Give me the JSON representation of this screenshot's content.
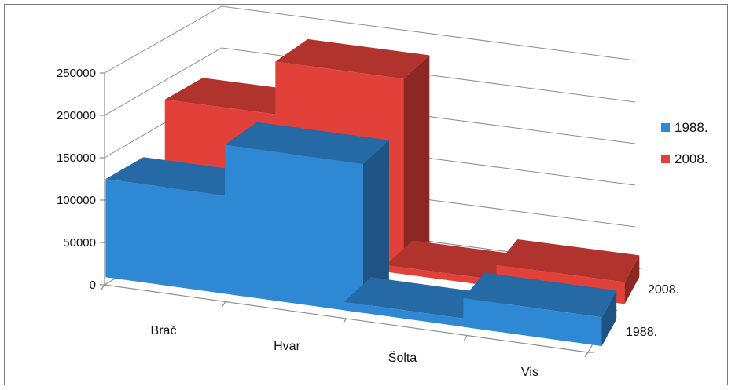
{
  "chart_data": {
    "type": "bar",
    "subtype": "3d-clustered-depth",
    "title": "",
    "categories": [
      "Brač",
      "Hvar",
      "Šolta",
      "Vis"
    ],
    "series": [
      {
        "name": "1988.",
        "values": [
          116000,
          176000,
          10000,
          34000
        ],
        "color": "#2f88d4"
      },
      {
        "name": "2008.",
        "values": [
          170000,
          233000,
          8000,
          26000
        ],
        "color": "#e2413a"
      }
    ],
    "depth_labels": [
      "2008.",
      "1988."
    ],
    "yticks": [
      "0",
      "50000",
      "100000",
      "150000",
      "200000",
      "250000"
    ],
    "ylim": [
      0,
      250000
    ],
    "grid": true,
    "legend_position": "right"
  }
}
